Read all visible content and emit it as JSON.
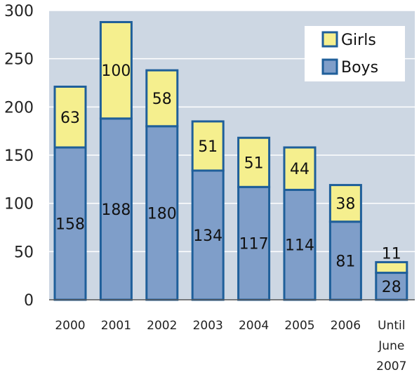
{
  "chart_data": {
    "type": "bar",
    "stacked": true,
    "categories": [
      "2000",
      "2001",
      "2002",
      "2003",
      "2004",
      "2005",
      "2006",
      "Until June 2007"
    ],
    "category_lines": [
      [
        "2000"
      ],
      [
        "2001"
      ],
      [
        "2002"
      ],
      [
        "2003"
      ],
      [
        "2004"
      ],
      [
        "2005"
      ],
      [
        "2006"
      ],
      [
        "Until",
        "June",
        "2007"
      ]
    ],
    "series": [
      {
        "name": "Boys",
        "values": [
          158,
          188,
          180,
          134,
          117,
          114,
          81,
          28
        ],
        "color": "#7f9ec9"
      },
      {
        "name": "Girls",
        "values": [
          63,
          100,
          58,
          51,
          51,
          44,
          38,
          11
        ],
        "color": "#f5ef8e"
      }
    ],
    "ylim": [
      0,
      300
    ],
    "yticks": [
      0,
      50,
      100,
      150,
      200,
      250,
      300
    ],
    "grid": true,
    "legend_position": "top-right",
    "legend_order": [
      "Girls",
      "Boys"
    ],
    "colors": {
      "plot_background": "#cdd7e3",
      "gridline": "#ffffff",
      "bar_border": "#1f5f9a",
      "axis": "#555555"
    }
  }
}
